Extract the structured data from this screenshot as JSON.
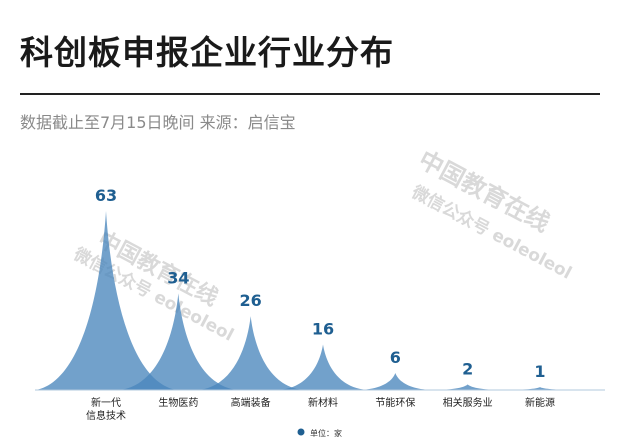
{
  "header": {
    "title": "科创板申报企业行业分布",
    "subtitle": "数据截止至7月15日晚间 来源：启信宝"
  },
  "watermark": {
    "line1": "中国教育在线",
    "line2": "微信公众号 eoleoleol"
  },
  "colors": {
    "series": "#4a87bd",
    "value_label": "#1f5f91",
    "legend_dot": "#1f5f91"
  },
  "chart_data": {
    "type": "area",
    "categories": [
      "新一代\n信息技术",
      "生物医药",
      "高端装备",
      "新材料",
      "节能环保",
      "相关服务业",
      "新能源"
    ],
    "values": [
      63,
      34,
      26,
      16,
      6,
      2,
      1
    ],
    "legend": "单位：家",
    "ylim": [
      0,
      63
    ],
    "grid": false
  }
}
